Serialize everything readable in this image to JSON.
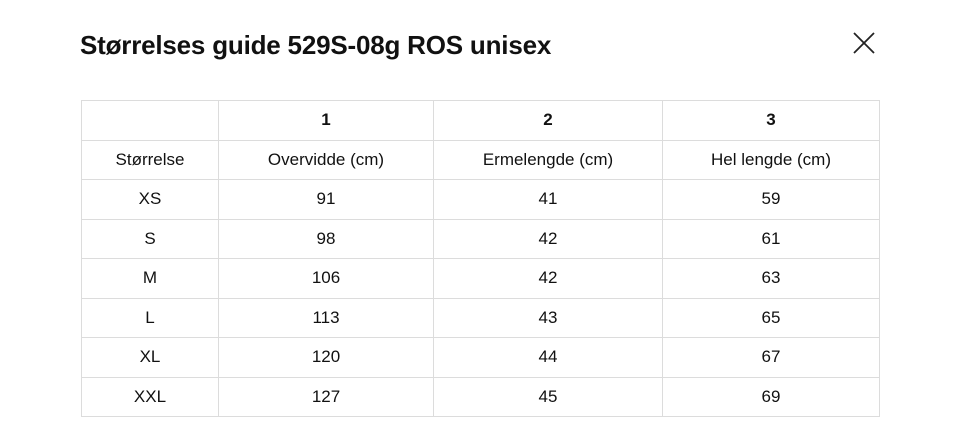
{
  "header": {
    "title": "Størrelses guide 529S-08g ROS unisex"
  },
  "table": {
    "groups": [
      "1",
      "2",
      "3"
    ],
    "columns": [
      "Størrelse",
      "Overvidde (cm)",
      "Ermelengde (cm)",
      "Hel lengde (cm)"
    ],
    "rows": [
      [
        "XS",
        91,
        41,
        59
      ],
      [
        "S",
        98,
        42,
        61
      ],
      [
        "M",
        106,
        42,
        63
      ],
      [
        "L",
        113,
        43,
        65
      ],
      [
        "XL",
        120,
        44,
        67
      ],
      [
        "XXL",
        127,
        45,
        69
      ]
    ]
  }
}
